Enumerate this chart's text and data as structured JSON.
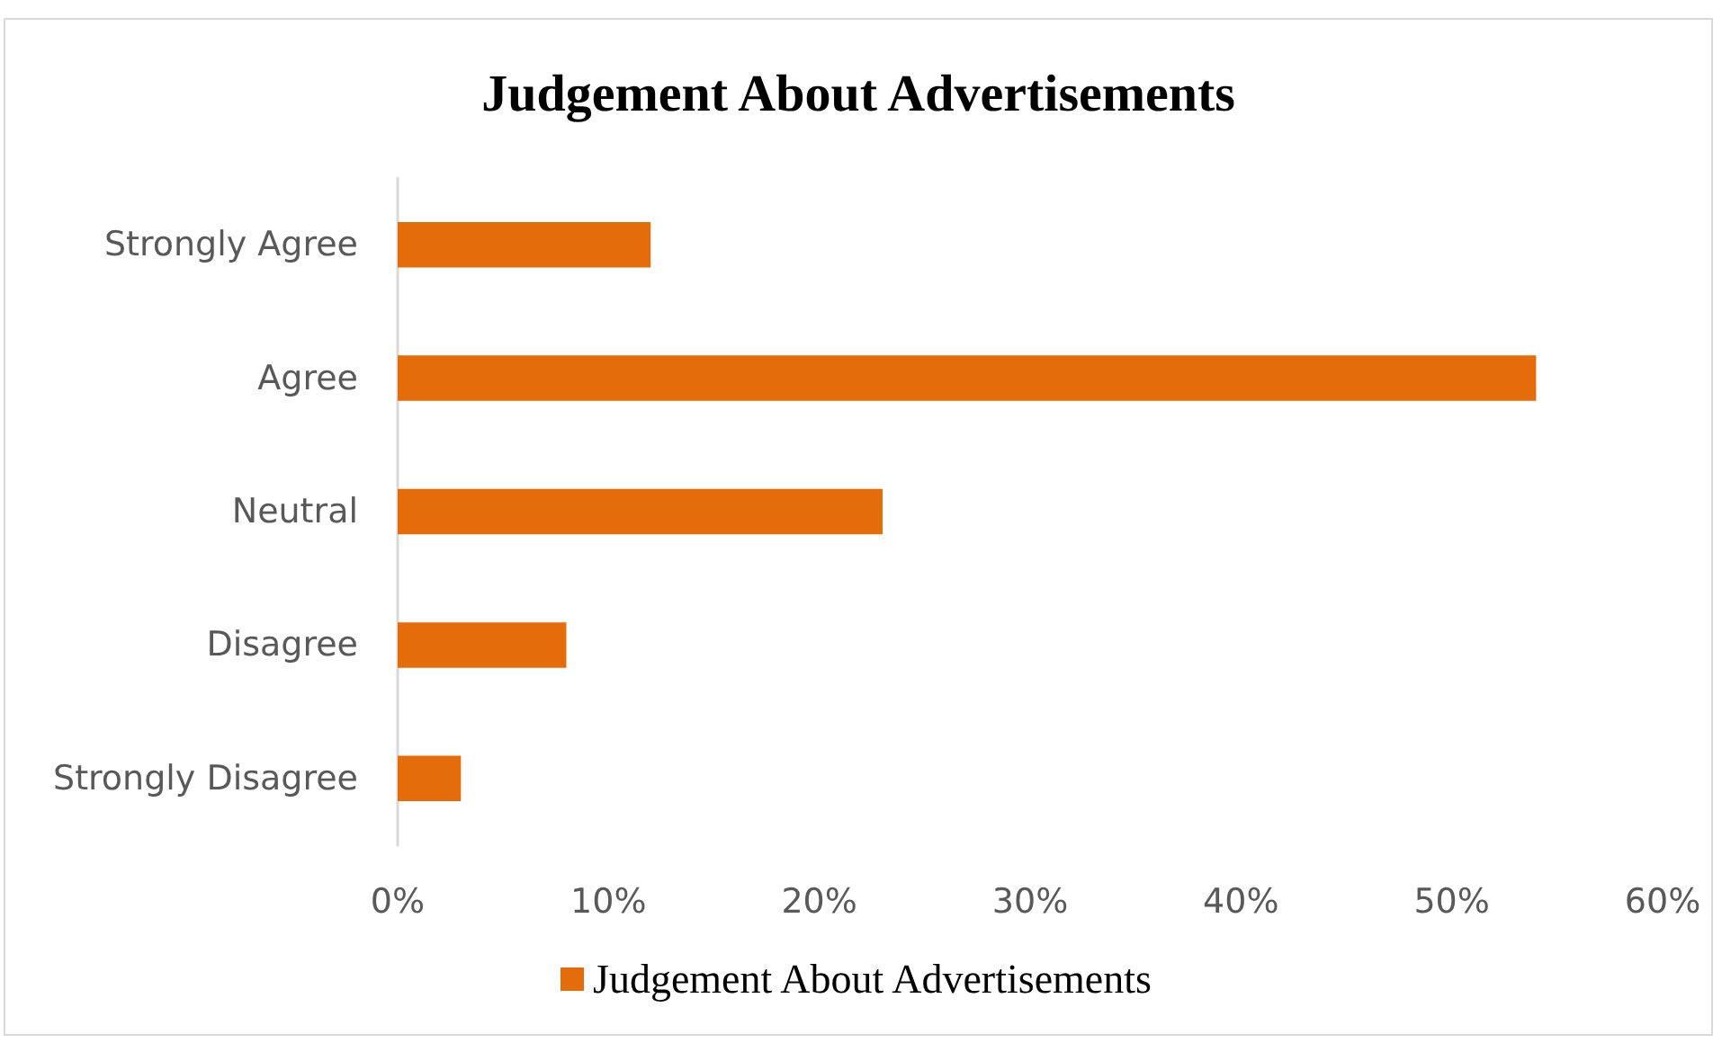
{
  "chart_data": {
    "type": "bar",
    "orientation": "horizontal",
    "title": "Judgement About Advertisements",
    "categories": [
      "Strongly Agree",
      "Agree",
      "Neutral",
      "Disagree",
      "Strongly Disagree"
    ],
    "series": [
      {
        "name": "Judgement About Advertisements",
        "color": "#e46c0a",
        "values": [
          12,
          54,
          23,
          8,
          3
        ]
      }
    ],
    "xlim": [
      0,
      60
    ],
    "xticks": [
      {
        "value": 0,
        "label": "0%"
      },
      {
        "value": 10,
        "label": "10%"
      },
      {
        "value": 20,
        "label": "20%"
      },
      {
        "value": 30,
        "label": "30%"
      },
      {
        "value": 40,
        "label": "40%"
      },
      {
        "value": 50,
        "label": "50%"
      },
      {
        "value": 60,
        "label": "60%"
      }
    ],
    "grid": false,
    "legend": "bottom"
  }
}
